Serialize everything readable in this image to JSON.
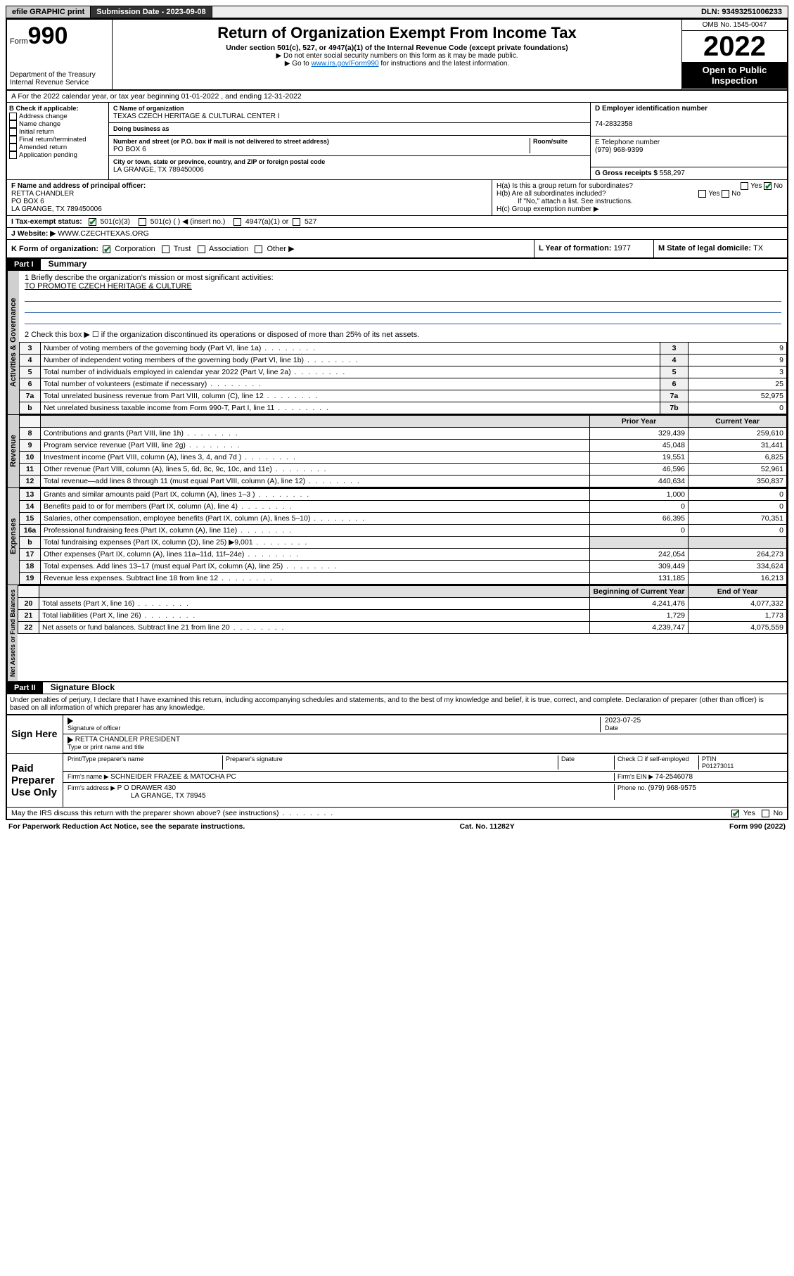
{
  "topbar": {
    "efile": "efile GRAPHIC print",
    "subdate_label": "Submission Date - ",
    "subdate": "2023-09-08",
    "dln_label": "DLN: ",
    "dln": "93493251006233"
  },
  "header": {
    "form_prefix": "Form",
    "form_num": "990",
    "dept": "Department of the Treasury\nInternal Revenue Service",
    "title": "Return of Organization Exempt From Income Tax",
    "sub1": "Under section 501(c), 527, or 4947(a)(1) of the Internal Revenue Code (except private foundations)",
    "sub2": "▶ Do not enter social security numbers on this form as it may be made public.",
    "sub3_a": "▶ Go to ",
    "sub3_link": "www.irs.gov/Form990",
    "sub3_b": " for instructions and the latest information.",
    "omb": "OMB No. 1545-0047",
    "year": "2022",
    "open": "Open to Public Inspection"
  },
  "line_a": "A For the 2022 calendar year, or tax year beginning 01-01-2022   , and ending 12-31-2022",
  "section_b": {
    "title": "B Check if applicable:",
    "opts": [
      "Address change",
      "Name change",
      "Initial return",
      "Final return/terminated",
      "Amended return",
      "Application pending"
    ]
  },
  "section_c": {
    "name_lbl": "C Name of organization",
    "name": "TEXAS CZECH HERITAGE & CULTURAL CENTER I",
    "dba_lbl": "Doing business as",
    "addr_lbl": "Number and street (or P.O. box if mail is not delivered to street address)",
    "room_lbl": "Room/suite",
    "addr": "PO BOX 6",
    "city_lbl": "City or town, state or province, country, and ZIP or foreign postal code",
    "city": "LA GRANGE, TX  789450006"
  },
  "section_d": {
    "lbl": "D Employer identification number",
    "val": "74-2832358"
  },
  "section_e": {
    "lbl": "E Telephone number",
    "val": "(979) 968-9399"
  },
  "section_g": {
    "lbl": "G Gross receipts $ ",
    "val": "558,297"
  },
  "section_f": {
    "lbl": "F Name and address of principal officer:",
    "name": "RETTA CHANDLER",
    "addr1": "PO BOX 6",
    "addr2": "LA GRANGE, TX  789450006"
  },
  "section_h": {
    "ha": "H(a)  Is this a group return for subordinates?",
    "hb": "H(b)  Are all subordinates included?",
    "hb_note": "If \"No,\" attach a list. See instructions.",
    "hc": "H(c)  Group exemption number ▶",
    "yes": "Yes",
    "no": "No"
  },
  "section_i": {
    "lbl": "I   Tax-exempt status:",
    "o1": "501(c)(3)",
    "o2": "501(c) (  ) ◀ (insert no.)",
    "o3": "4947(a)(1) or",
    "o4": "527"
  },
  "section_j": {
    "lbl": "J   Website: ▶ ",
    "val": "WWW.CZECHTEXAS.ORG"
  },
  "section_k": {
    "lbl": "K Form of organization:",
    "opts": [
      "Corporation",
      "Trust",
      "Association",
      "Other ▶"
    ]
  },
  "section_l": {
    "lbl": "L Year of formation: ",
    "val": "1977"
  },
  "section_m": {
    "lbl": "M State of legal domicile: ",
    "val": "TX"
  },
  "part1": {
    "hdr": "Part I",
    "title": "Summary",
    "q1": "1   Briefly describe the organization's mission or most significant activities:",
    "mission": "TO PROMOTE CZECH HERITAGE & CULTURE",
    "q2": "2   Check this box ▶ ☐  if the organization discontinued its operations or disposed of more than 25% of its net assets.",
    "tabs": {
      "act": "Activities & Governance",
      "rev": "Revenue",
      "exp": "Expenses",
      "net": "Net Assets or Fund Balances"
    },
    "col_prior": "Prior Year",
    "col_current": "Current Year",
    "col_beg": "Beginning of Current Year",
    "col_end": "End of Year",
    "rows_gov": [
      {
        "n": "3",
        "t": "Number of voting members of the governing body (Part VI, line 1a)",
        "box": "3",
        "v": "9"
      },
      {
        "n": "4",
        "t": "Number of independent voting members of the governing body (Part VI, line 1b)",
        "box": "4",
        "v": "9"
      },
      {
        "n": "5",
        "t": "Total number of individuals employed in calendar year 2022 (Part V, line 2a)",
        "box": "5",
        "v": "3"
      },
      {
        "n": "6",
        "t": "Total number of volunteers (estimate if necessary)",
        "box": "6",
        "v": "25"
      },
      {
        "n": "7a",
        "t": "Total unrelated business revenue from Part VIII, column (C), line 12",
        "box": "7a",
        "v": "52,975"
      },
      {
        "n": "b",
        "t": "Net unrelated business taxable income from Form 990-T, Part I, line 11",
        "box": "7b",
        "v": "0"
      }
    ],
    "rows_rev": [
      {
        "n": "8",
        "t": "Contributions and grants (Part VIII, line 1h)",
        "p": "329,439",
        "c": "259,610"
      },
      {
        "n": "9",
        "t": "Program service revenue (Part VIII, line 2g)",
        "p": "45,048",
        "c": "31,441"
      },
      {
        "n": "10",
        "t": "Investment income (Part VIII, column (A), lines 3, 4, and 7d )",
        "p": "19,551",
        "c": "6,825"
      },
      {
        "n": "11",
        "t": "Other revenue (Part VIII, column (A), lines 5, 6d, 8c, 9c, 10c, and 11e)",
        "p": "46,596",
        "c": "52,961"
      },
      {
        "n": "12",
        "t": "Total revenue—add lines 8 through 11 (must equal Part VIII, column (A), line 12)",
        "p": "440,634",
        "c": "350,837"
      }
    ],
    "rows_exp": [
      {
        "n": "13",
        "t": "Grants and similar amounts paid (Part IX, column (A), lines 1–3 )",
        "p": "1,000",
        "c": "0"
      },
      {
        "n": "14",
        "t": "Benefits paid to or for members (Part IX, column (A), line 4)",
        "p": "0",
        "c": "0"
      },
      {
        "n": "15",
        "t": "Salaries, other compensation, employee benefits (Part IX, column (A), lines 5–10)",
        "p": "66,395",
        "c": "70,351"
      },
      {
        "n": "16a",
        "t": "Professional fundraising fees (Part IX, column (A), line 11e)",
        "p": "0",
        "c": "0"
      },
      {
        "n": "b",
        "t": "Total fundraising expenses (Part IX, column (D), line 25) ▶9,001",
        "p": "",
        "c": ""
      },
      {
        "n": "17",
        "t": "Other expenses (Part IX, column (A), lines 11a–11d, 11f–24e)",
        "p": "242,054",
        "c": "264,273"
      },
      {
        "n": "18",
        "t": "Total expenses. Add lines 13–17 (must equal Part IX, column (A), line 25)",
        "p": "309,449",
        "c": "334,624"
      },
      {
        "n": "19",
        "t": "Revenue less expenses. Subtract line 18 from line 12",
        "p": "131,185",
        "c": "16,213"
      }
    ],
    "rows_net": [
      {
        "n": "20",
        "t": "Total assets (Part X, line 16)",
        "p": "4,241,476",
        "c": "4,077,332"
      },
      {
        "n": "21",
        "t": "Total liabilities (Part X, line 26)",
        "p": "1,729",
        "c": "1,773"
      },
      {
        "n": "22",
        "t": "Net assets or fund balances. Subtract line 21 from line 20",
        "p": "4,239,747",
        "c": "4,075,559"
      }
    ]
  },
  "part2": {
    "hdr": "Part II",
    "title": "Signature Block",
    "decl": "Under penalties of perjury, I declare that I have examined this return, including accompanying schedules and statements, and to the best of my knowledge and belief, it is true, correct, and complete. Declaration of preparer (other than officer) is based on all information of which preparer has any knowledge.",
    "sign_here": "Sign Here",
    "sig_officer": "Signature of officer",
    "date_lbl": "Date",
    "date": "2023-07-25",
    "name_title": "RETTA CHANDLER  PRESIDENT",
    "type_lbl": "Type or print name and title",
    "paid": "Paid Preparer Use Only",
    "prep_name_lbl": "Print/Type preparer's name",
    "prep_sig_lbl": "Preparer's signature",
    "check_lbl": "Check ☐ if self-employed",
    "ptin_lbl": "PTIN",
    "ptin": "P01273011",
    "firm_name_lbl": "Firm's name   ▶ ",
    "firm_name": "SCHNEIDER FRAZEE & MATOCHA PC",
    "firm_ein_lbl": "Firm's EIN ▶ ",
    "firm_ein": "74-2546078",
    "firm_addr_lbl": "Firm's address ▶ ",
    "firm_addr1": "P O DRAWER 430",
    "firm_addr2": "LA GRANGE, TX  78945",
    "phone_lbl": "Phone no. ",
    "phone": "(979) 968-9575",
    "discuss": "May the IRS discuss this return with the preparer shown above? (see instructions)",
    "yes": "Yes",
    "no": "No"
  },
  "footer": {
    "left": "For Paperwork Reduction Act Notice, see the separate instructions.",
    "mid": "Cat. No. 11282Y",
    "right": "Form 990 (2022)"
  }
}
